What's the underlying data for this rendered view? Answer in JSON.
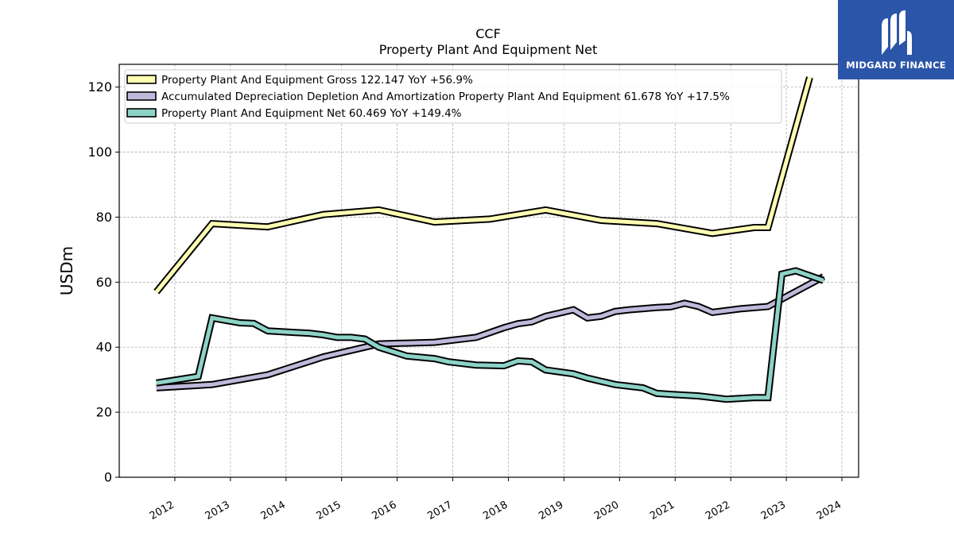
{
  "brand": {
    "name": "MIDGARD FINANCE",
    "bg_color": "#2b55a8"
  },
  "chart_data": {
    "type": "line",
    "title": "CCF",
    "subtitle": "Property Plant And Equipment Net",
    "xlabel": "",
    "ylabel": "USDm",
    "ylim": [
      0,
      127
    ],
    "xlim": [
      2011.0,
      2024.3
    ],
    "yticks": [
      0,
      20,
      40,
      60,
      80,
      100,
      120
    ],
    "xticks": [
      "2012",
      "2013",
      "2014",
      "2015",
      "2016",
      "2017",
      "2018",
      "2019",
      "2020",
      "2021",
      "2022",
      "2023",
      "2024"
    ],
    "grid": true,
    "legend_position": "top-left",
    "series": [
      {
        "name": "Property Plant And Equipment Gross",
        "legend_label": "Property Plant And Equipment Gross  122.147 YoY +56.9%",
        "color": "#ffffb3",
        "points": [
          [
            2011.67,
            57.0
          ],
          [
            2012.67,
            78.0
          ],
          [
            2013.67,
            77.0
          ],
          [
            2014.67,
            80.8
          ],
          [
            2015.67,
            82.2
          ],
          [
            2016.67,
            78.5
          ],
          [
            2017.67,
            79.4
          ],
          [
            2018.67,
            82.2
          ],
          [
            2019.67,
            79.0
          ],
          [
            2020.67,
            78.0
          ],
          [
            2021.67,
            75.0
          ],
          [
            2022.42,
            76.8
          ],
          [
            2022.67,
            76.8
          ],
          [
            2023.42,
            123.0
          ]
        ]
      },
      {
        "name": "Accumulated Depreciation Depletion And Amortization Property Plant And Equipment",
        "legend_label": "Accumulated Depreciation Depletion And Amortization Property Plant And Equipment  61.678 YoY +17.5%",
        "color": "#bebada",
        "points": [
          [
            2011.67,
            27.5
          ],
          [
            2012.67,
            28.5
          ],
          [
            2013.67,
            31.5
          ],
          [
            2014.67,
            37.0
          ],
          [
            2015.67,
            41.0
          ],
          [
            2016.67,
            41.5
          ],
          [
            2017.42,
            43.0
          ],
          [
            2017.92,
            46.0
          ],
          [
            2018.17,
            47.2
          ],
          [
            2018.42,
            47.8
          ],
          [
            2018.67,
            49.5
          ],
          [
            2018.92,
            50.5
          ],
          [
            2019.17,
            51.5
          ],
          [
            2019.42,
            49.0
          ],
          [
            2019.67,
            49.5
          ],
          [
            2019.92,
            51.0
          ],
          [
            2020.17,
            51.5
          ],
          [
            2020.67,
            52.2
          ],
          [
            2020.92,
            52.4
          ],
          [
            2021.17,
            53.5
          ],
          [
            2021.42,
            52.5
          ],
          [
            2021.67,
            50.7
          ],
          [
            2022.17,
            51.8
          ],
          [
            2022.67,
            52.5
          ],
          [
            2023.67,
            61.7
          ]
        ]
      },
      {
        "name": "Property Plant And Equipment Net",
        "legend_label": "Property Plant And Equipment Net  60.469 YoY +149.4%",
        "color": "#8dd3c7",
        "points": [
          [
            2011.67,
            29.0
          ],
          [
            2012.42,
            31.0
          ],
          [
            2012.67,
            49.0
          ],
          [
            2013.17,
            47.5
          ],
          [
            2013.42,
            47.3
          ],
          [
            2013.67,
            45.0
          ],
          [
            2014.17,
            44.5
          ],
          [
            2014.42,
            44.3
          ],
          [
            2014.67,
            43.8
          ],
          [
            2014.92,
            43.0
          ],
          [
            2015.17,
            43.0
          ],
          [
            2015.42,
            42.5
          ],
          [
            2015.67,
            40.0
          ],
          [
            2016.17,
            37.3
          ],
          [
            2016.67,
            36.5
          ],
          [
            2016.92,
            35.5
          ],
          [
            2017.42,
            34.5
          ],
          [
            2017.92,
            34.3
          ],
          [
            2018.17,
            35.8
          ],
          [
            2018.42,
            35.5
          ],
          [
            2018.67,
            33.0
          ],
          [
            2019.17,
            31.8
          ],
          [
            2019.42,
            30.5
          ],
          [
            2019.67,
            29.5
          ],
          [
            2019.92,
            28.5
          ],
          [
            2020.42,
            27.5
          ],
          [
            2020.67,
            25.8
          ],
          [
            2020.92,
            25.5
          ],
          [
            2021.42,
            25.0
          ],
          [
            2021.92,
            24.0
          ],
          [
            2022.42,
            24.5
          ],
          [
            2022.67,
            24.5
          ],
          [
            2022.92,
            62.5
          ],
          [
            2023.17,
            63.5
          ],
          [
            2023.67,
            60.5
          ]
        ]
      }
    ]
  }
}
